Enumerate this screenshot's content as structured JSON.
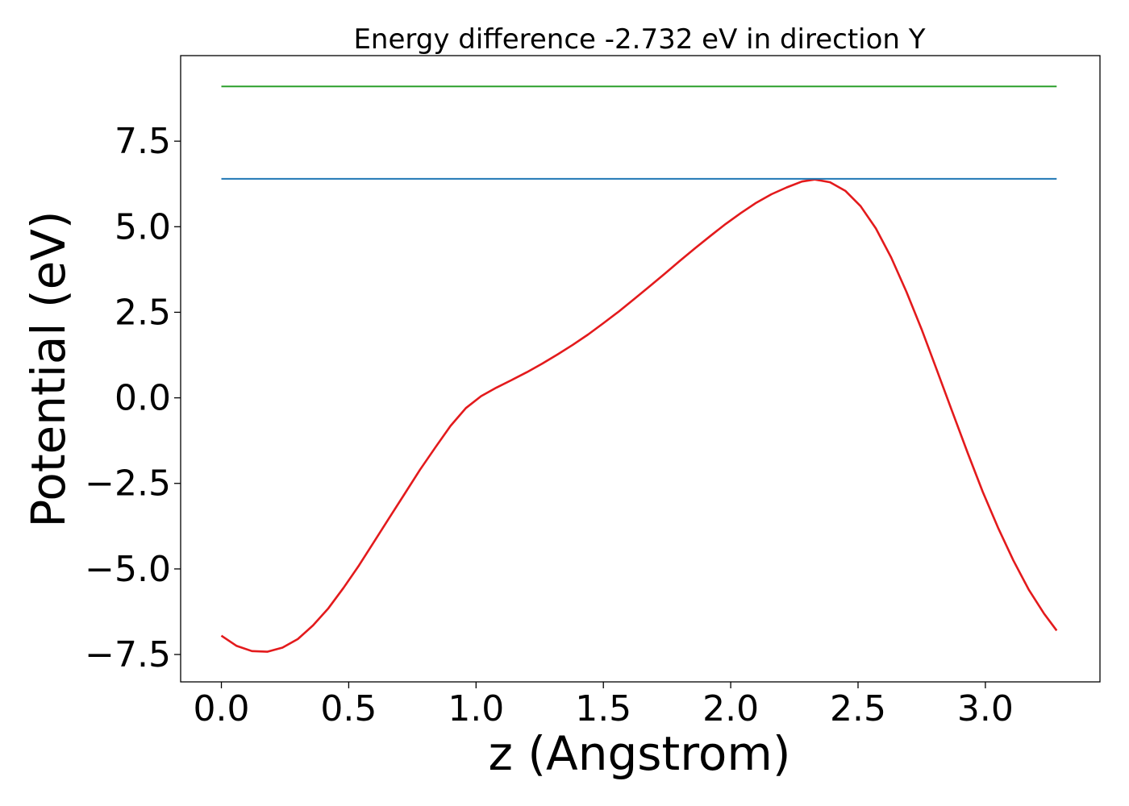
{
  "chart_data": {
    "type": "line",
    "title": "Energy difference -2.732 eV in direction Y",
    "xlabel": "z (Angstrom)",
    "ylabel": "Potential (eV)",
    "xlim": [
      -0.16,
      3.45
    ],
    "ylim": [
      -8.3,
      10.0
    ],
    "grid": false,
    "x_ticks": [
      {
        "value": 0.0,
        "label": "0.0"
      },
      {
        "value": 0.5,
        "label": "0.5"
      },
      {
        "value": 1.0,
        "label": "1.0"
      },
      {
        "value": 1.5,
        "label": "1.5"
      },
      {
        "value": 2.0,
        "label": "2.0"
      },
      {
        "value": 2.5,
        "label": "2.5"
      },
      {
        "value": 3.0,
        "label": "3.0"
      }
    ],
    "y_ticks": [
      {
        "value": -7.5,
        "label": "−7.5"
      },
      {
        "value": -5.0,
        "label": "−5.0"
      },
      {
        "value": -2.5,
        "label": "−2.5"
      },
      {
        "value": 0.0,
        "label": "0.0"
      },
      {
        "value": 2.5,
        "label": "2.5"
      },
      {
        "value": 5.0,
        "label": "5.0"
      },
      {
        "value": 7.5,
        "label": "7.5"
      }
    ],
    "series": [
      {
        "color": "#e31a1c",
        "points": [
          [
            0.0,
            -6.95
          ],
          [
            0.06,
            -7.25
          ],
          [
            0.12,
            -7.4
          ],
          [
            0.18,
            -7.42
          ],
          [
            0.24,
            -7.3
          ],
          [
            0.3,
            -7.05
          ],
          [
            0.36,
            -6.65
          ],
          [
            0.42,
            -6.15
          ],
          [
            0.48,
            -5.55
          ],
          [
            0.54,
            -4.9
          ],
          [
            0.6,
            -4.2
          ],
          [
            0.66,
            -3.5
          ],
          [
            0.72,
            -2.8
          ],
          [
            0.78,
            -2.1
          ],
          [
            0.84,
            -1.45
          ],
          [
            0.9,
            -0.82
          ],
          [
            0.96,
            -0.3
          ],
          [
            1.02,
            0.05
          ],
          [
            1.08,
            0.3
          ],
          [
            1.14,
            0.52
          ],
          [
            1.2,
            0.75
          ],
          [
            1.26,
            1.0
          ],
          [
            1.32,
            1.27
          ],
          [
            1.38,
            1.55
          ],
          [
            1.44,
            1.85
          ],
          [
            1.5,
            2.18
          ],
          [
            1.56,
            2.52
          ],
          [
            1.62,
            2.88
          ],
          [
            1.68,
            3.25
          ],
          [
            1.74,
            3.62
          ],
          [
            1.8,
            4.0
          ],
          [
            1.86,
            4.37
          ],
          [
            1.92,
            4.73
          ],
          [
            1.98,
            5.08
          ],
          [
            2.04,
            5.4
          ],
          [
            2.1,
            5.7
          ],
          [
            2.16,
            5.95
          ],
          [
            2.22,
            6.15
          ],
          [
            2.28,
            6.32
          ],
          [
            2.33,
            6.38
          ],
          [
            2.39,
            6.3
          ],
          [
            2.45,
            6.05
          ],
          [
            2.51,
            5.6
          ],
          [
            2.57,
            4.95
          ],
          [
            2.63,
            4.1
          ],
          [
            2.69,
            3.1
          ],
          [
            2.75,
            2.0
          ],
          [
            2.81,
            0.8
          ],
          [
            2.87,
            -0.4
          ],
          [
            2.93,
            -1.6
          ],
          [
            2.99,
            -2.75
          ],
          [
            3.05,
            -3.8
          ],
          [
            3.11,
            -4.75
          ],
          [
            3.17,
            -5.6
          ],
          [
            3.23,
            -6.3
          ],
          [
            3.28,
            -6.8
          ]
        ]
      },
      {
        "color": "#1f77b4",
        "points": [
          [
            0.0,
            6.4
          ],
          [
            3.28,
            6.4
          ]
        ]
      },
      {
        "color": "#2ca02c",
        "points": [
          [
            0.0,
            9.1
          ],
          [
            3.28,
            9.1
          ]
        ]
      }
    ]
  }
}
